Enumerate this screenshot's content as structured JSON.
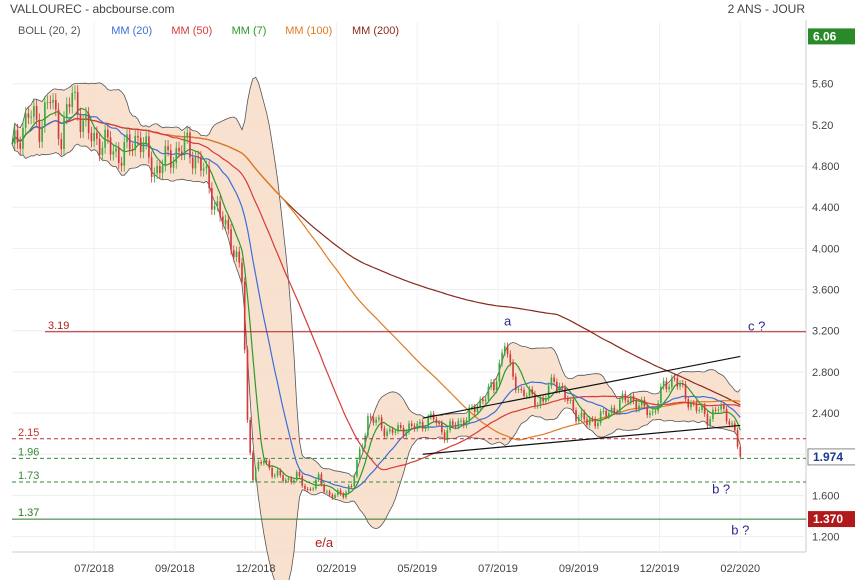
{
  "header": {
    "title": "VALLOUREC - abcbourse.com",
    "period": "2 ANS - JOUR"
  },
  "legend": [
    {
      "label": "BOLL (20, 2)",
      "color": "#555555"
    },
    {
      "label": "MM (20)",
      "color": "#3b6fd8"
    },
    {
      "label": "MM (50)",
      "color": "#d83a3a"
    },
    {
      "label": "MM (7)",
      "color": "#2a9a2a"
    },
    {
      "label": "MM (100)",
      "color": "#e07b1e"
    },
    {
      "label": "MM (200)",
      "color": "#8a2a1e"
    }
  ],
  "colors": {
    "up": "#3aa83a",
    "down": "#d03a3a",
    "bollinger_fill": "#f8dcc8",
    "resistance": "#b02020",
    "support_dash_red": "#c03030",
    "support_dash_green": "#3a8a3a",
    "support_solid_green": "#2a7a2a",
    "current_price_bg": "#ffffff",
    "last_level_bg": "#b01a1a",
    "high_level_bg": "#2a8a2a",
    "annotation": "#2a2a8a",
    "axis_text": "#444444"
  },
  "chart_data": {
    "type": "candlestick",
    "title": "VALLOUREC",
    "x_ticks": [
      "07/2018",
      "09/2018",
      "12/2018",
      "02/2019",
      "05/2019",
      "07/2019",
      "09/2019",
      "12/2019",
      "02/2020"
    ],
    "y_ticks": [
      1.2,
      1.6,
      2.0,
      2.4,
      2.8,
      3.2,
      3.6,
      4.0,
      4.4,
      4.8,
      5.2,
      5.6
    ],
    "y_tick_labels": [
      "1.200",
      "1.600",
      "",
      "2.400",
      "2.800",
      "3.200",
      "3.600",
      "4.000",
      "4.400",
      "4.800",
      "5.20",
      "5.60"
    ],
    "ylim": [
      1.05,
      6.2
    ],
    "price_path": [
      [
        0,
        4.95
      ],
      [
        6,
        5.3
      ],
      [
        10,
        5.2
      ],
      [
        14,
        5.45
      ],
      [
        18,
        5.1
      ],
      [
        22,
        5.5
      ],
      [
        28,
        5.1
      ],
      [
        32,
        5.05
      ],
      [
        40,
        4.9
      ],
      [
        46,
        5.1
      ],
      [
        52,
        4.75
      ],
      [
        58,
        4.9
      ],
      [
        64,
        5.0
      ],
      [
        70,
        4.75
      ],
      [
        76,
        4.3
      ],
      [
        80,
        4.1
      ],
      [
        84,
        3.7
      ],
      [
        86,
        2.3
      ],
      [
        88,
        1.8
      ],
      [
        92,
        1.95
      ],
      [
        96,
        1.8
      ],
      [
        100,
        1.75
      ],
      [
        104,
        1.78
      ],
      [
        108,
        1.65
      ],
      [
        112,
        1.75
      ],
      [
        116,
        1.6
      ],
      [
        120,
        1.6
      ],
      [
        124,
        1.7
      ],
      [
        126,
        1.9
      ],
      [
        130,
        2.35
      ],
      [
        134,
        2.3
      ],
      [
        138,
        2.2
      ],
      [
        142,
        2.25
      ],
      [
        146,
        2.25
      ],
      [
        150,
        2.3
      ],
      [
        154,
        2.35
      ],
      [
        158,
        2.2
      ],
      [
        162,
        2.3
      ],
      [
        166,
        2.35
      ],
      [
        172,
        2.55
      ],
      [
        176,
        2.65
      ],
      [
        180,
        3.1
      ],
      [
        182,
        2.8
      ],
      [
        186,
        2.6
      ],
      [
        190,
        2.55
      ],
      [
        194,
        2.5
      ],
      [
        198,
        2.75
      ],
      [
        202,
        2.55
      ],
      [
        206,
        2.4
      ],
      [
        210,
        2.3
      ],
      [
        214,
        2.35
      ],
      [
        218,
        2.4
      ],
      [
        222,
        2.5
      ],
      [
        226,
        2.55
      ],
      [
        230,
        2.45
      ],
      [
        234,
        2.4
      ],
      [
        238,
        2.65
      ],
      [
        242,
        2.75
      ],
      [
        246,
        2.55
      ],
      [
        250,
        2.45
      ],
      [
        254,
        2.35
      ],
      [
        258,
        2.45
      ],
      [
        262,
        2.35
      ],
      [
        264,
        2.2
      ],
      [
        266,
        1.974
      ]
    ],
    "levels": [
      {
        "label": "3.19",
        "value": 3.19,
        "style": "resistance"
      },
      {
        "label": "2.15",
        "value": 2.15,
        "style": "support_dash_red"
      },
      {
        "label": "1.96",
        "value": 1.96,
        "style": "support_dash_green"
      },
      {
        "label": "1.73",
        "value": 1.73,
        "style": "support_dash_green"
      },
      {
        "label": "1.37",
        "value": 1.37,
        "style": "support_solid_green"
      }
    ],
    "price_tags": [
      {
        "label": "6.06",
        "value": 6.06,
        "style": "high_level_bg"
      },
      {
        "label": "1.974",
        "value": 1.974,
        "style": "current_price_bg"
      },
      {
        "label": "1.370",
        "value": 1.37,
        "style": "last_level_bg"
      }
    ],
    "trend_channel": {
      "upper": [
        [
          150,
          2.35
        ],
        [
          266,
          2.95
        ]
      ],
      "lower": [
        [
          150,
          2.0
        ],
        [
          266,
          2.28
        ]
      ]
    },
    "annotations": [
      {
        "text": "a",
        "x": 181,
        "y": 3.25
      },
      {
        "text": "c ?",
        "x": 272,
        "y": 3.2
      },
      {
        "text": "e/a",
        "x": 114,
        "y": 1.1
      },
      {
        "text": "b ?",
        "x": 259,
        "y": 1.62
      },
      {
        "text": "b ?",
        "x": 266,
        "y": 1.22
      }
    ],
    "x_range": [
      0,
      290
    ]
  }
}
